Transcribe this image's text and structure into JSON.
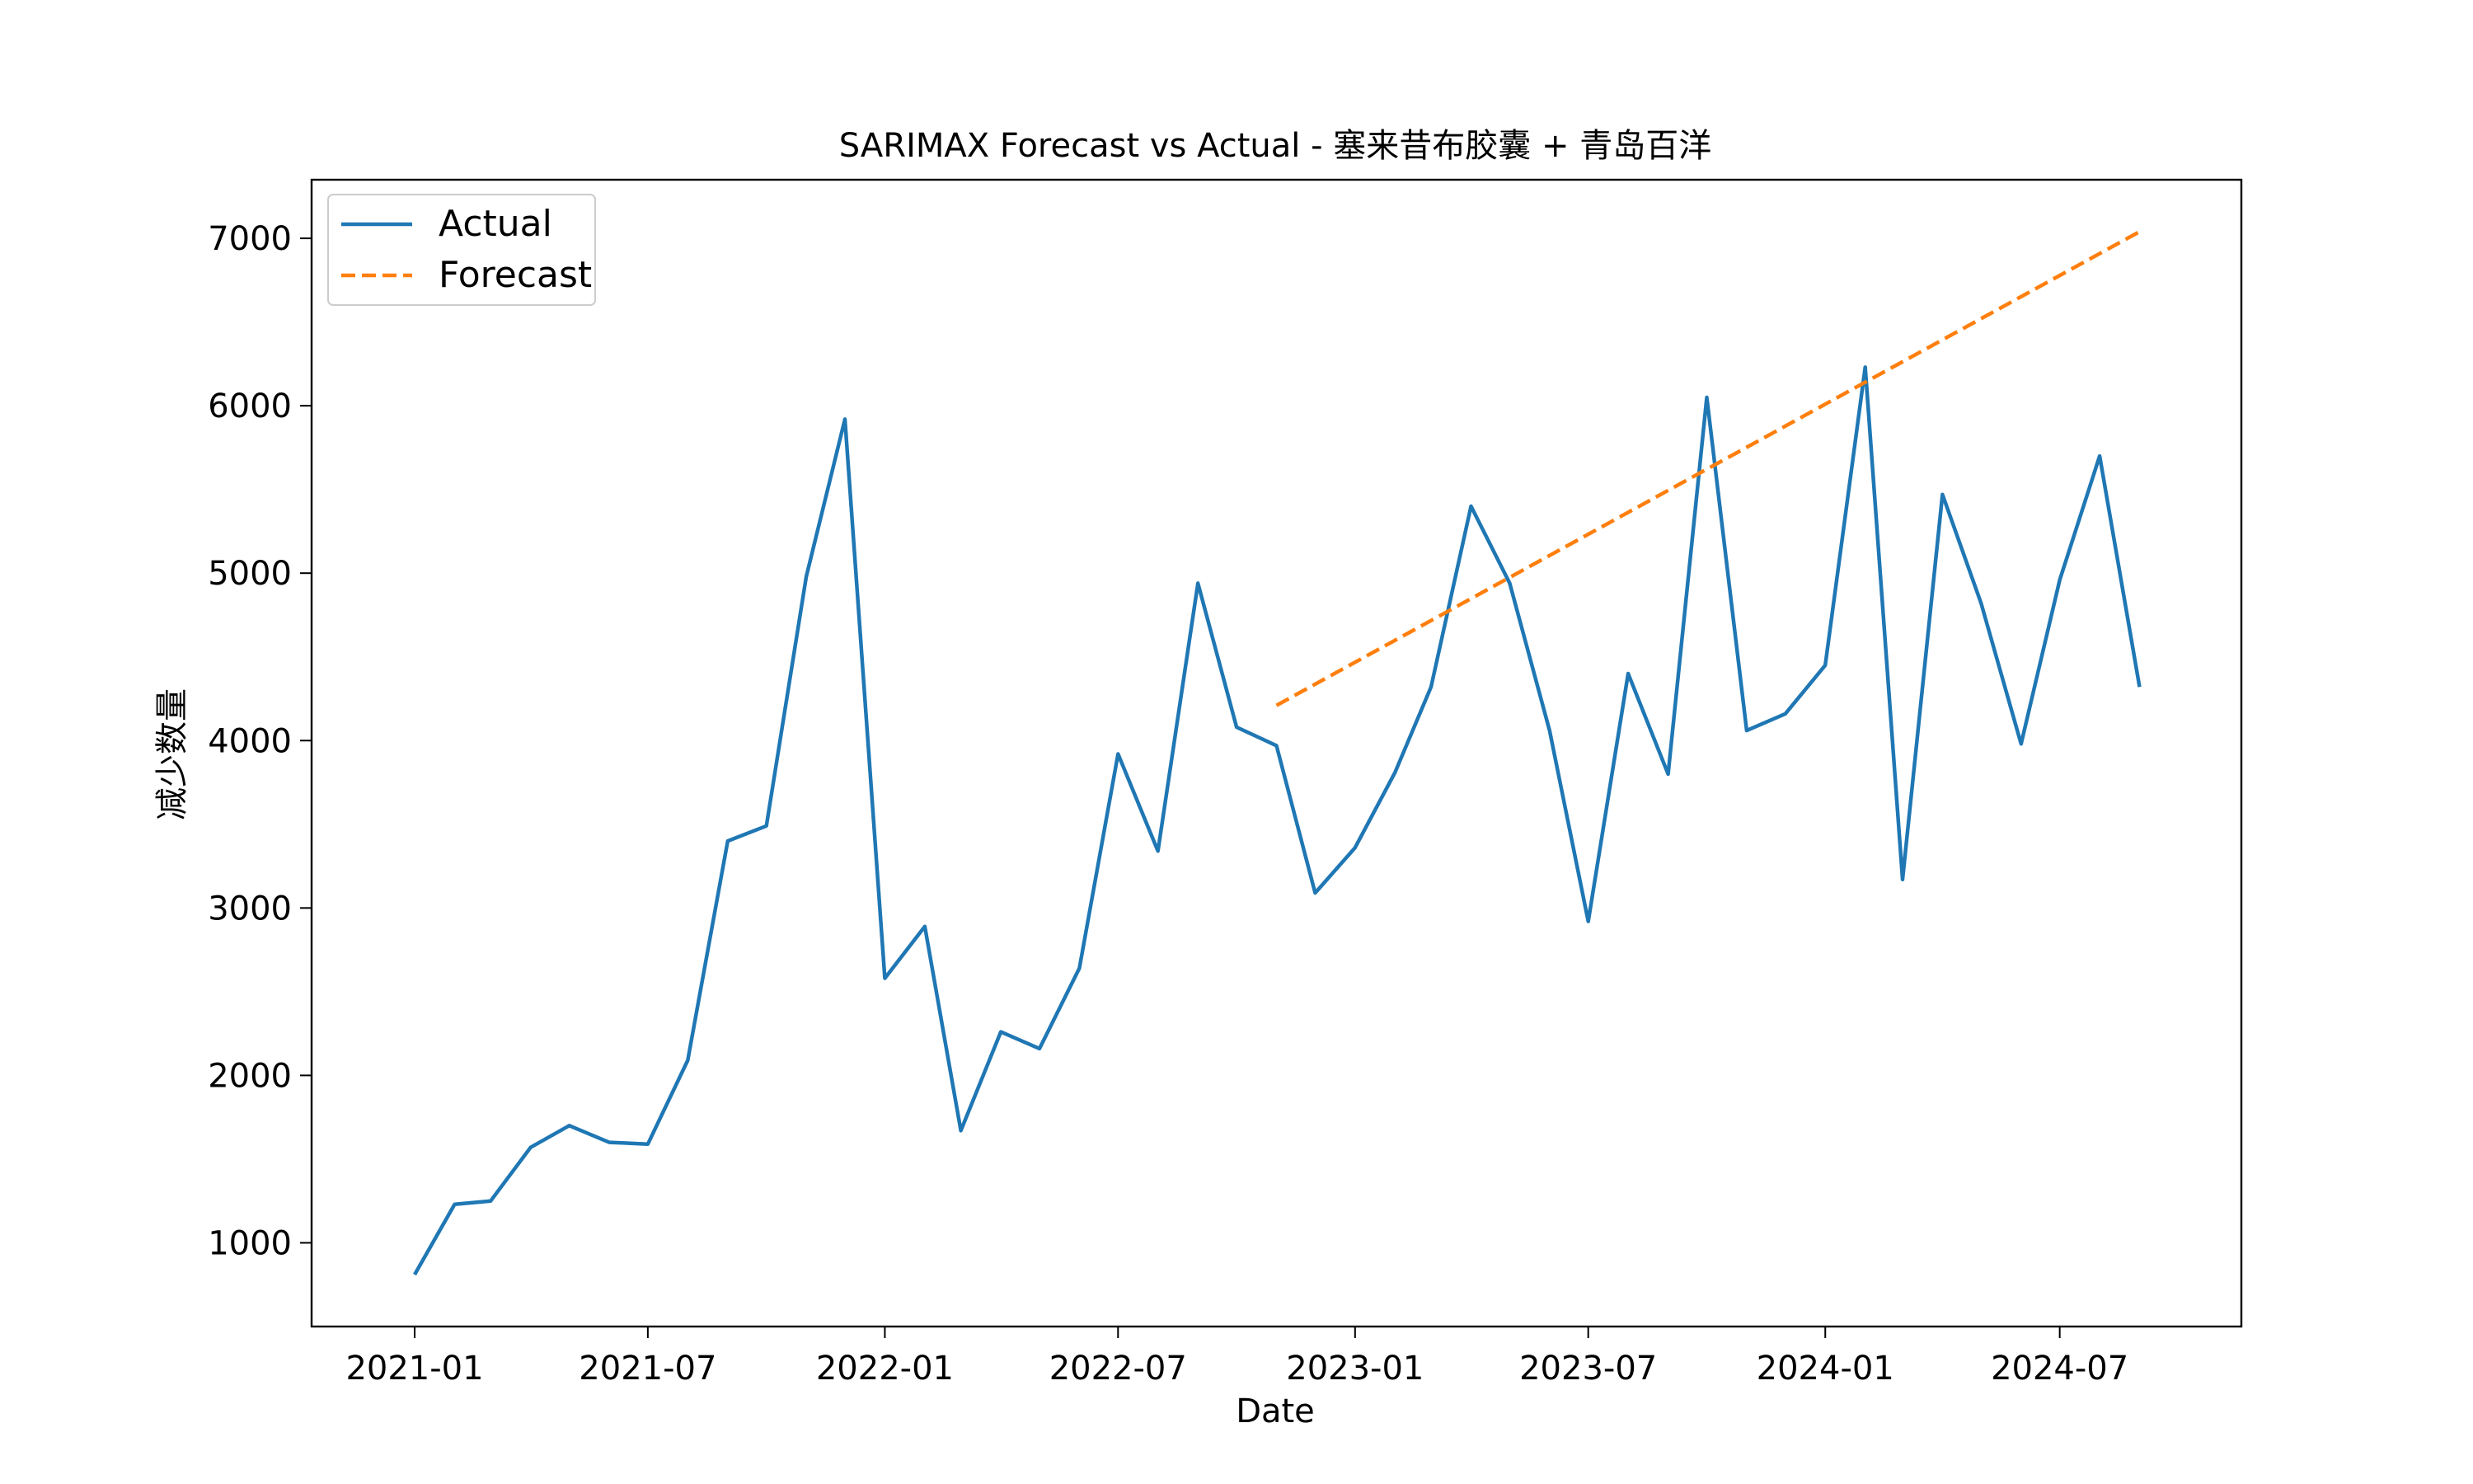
{
  "chart_data": {
    "type": "line",
    "title": "SARIMAX Forecast vs Actual - 塞来昔布胶囊 + 青岛百洋",
    "xlabel": "Date",
    "ylabel": "减少数量",
    "xlim": [
      "2020-10-13",
      "2024-11-19"
    ],
    "ylim": [
      500,
      7350
    ],
    "x_ticks": [
      "2021-01",
      "2021-07",
      "2022-01",
      "2022-07",
      "2023-01",
      "2023-07",
      "2024-01",
      "2024-07"
    ],
    "y_ticks": [
      1000,
      2000,
      3000,
      4000,
      5000,
      6000,
      7000
    ],
    "grid": false,
    "legend_position": "upper left",
    "colors": {
      "Actual": "#1f77b4",
      "Forecast": "#ff7f0e"
    },
    "series": [
      {
        "name": "Actual",
        "style": "solid",
        "x": [
          "2021-01-01",
          "2021-02-01",
          "2021-03-01",
          "2021-04-01",
          "2021-05-01",
          "2021-06-01",
          "2021-07-01",
          "2021-08-01",
          "2021-09-01",
          "2021-10-01",
          "2021-11-01",
          "2021-12-01",
          "2022-01-01",
          "2022-02-01",
          "2022-03-01",
          "2022-04-01",
          "2022-05-01",
          "2022-06-01",
          "2022-07-01",
          "2022-08-01",
          "2022-09-01",
          "2022-10-01",
          "2022-11-01",
          "2022-12-01",
          "2023-01-01",
          "2023-02-01",
          "2023-03-01",
          "2023-04-01",
          "2023-05-01",
          "2023-06-01",
          "2023-07-01",
          "2023-08-01",
          "2023-09-01",
          "2023-10-01",
          "2023-11-01",
          "2023-12-01",
          "2024-01-01",
          "2024-02-01",
          "2024-03-01",
          "2024-04-01",
          "2024-05-01",
          "2024-06-01",
          "2024-07-01",
          "2024-08-01",
          "2024-09-01"
        ],
        "y": [
          810,
          1230,
          1250,
          1570,
          1700,
          1600,
          1590,
          2090,
          3400,
          3490,
          4980,
          5920,
          2580,
          2890,
          1670,
          2260,
          2160,
          2640,
          3920,
          3340,
          4940,
          4080,
          3970,
          3090,
          3360,
          3810,
          4320,
          5400,
          4940,
          4060,
          2920,
          4400,
          3800,
          6050,
          4060,
          4160,
          4450,
          6230,
          3170,
          5470,
          4820,
          3980,
          4960,
          5700,
          4320
        ]
      },
      {
        "name": "Forecast",
        "style": "dashed",
        "x": [
          "2022-11-01",
          "2024-09-01"
        ],
        "y": [
          4210,
          7040
        ]
      }
    ]
  }
}
